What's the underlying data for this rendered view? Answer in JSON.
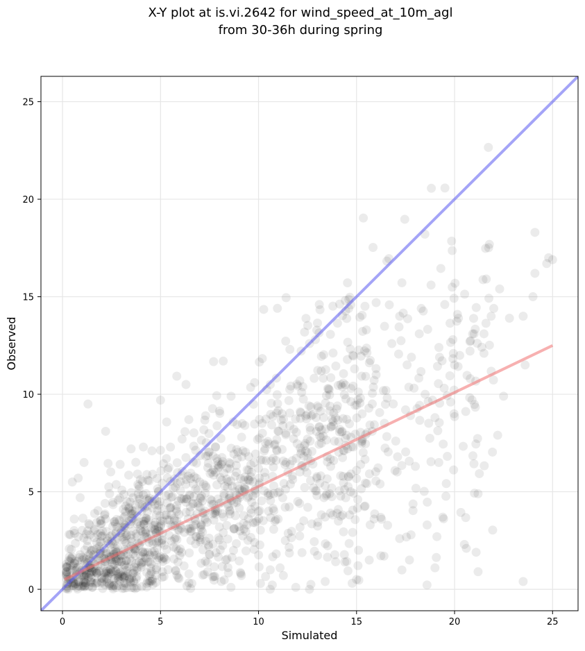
{
  "figure": {
    "title_line1": "X-Y plot at is.vi.2642 for wind_speed_at_10m_agl",
    "title_line2": "from 30-36h during spring"
  },
  "chart_data": {
    "type": "scatter",
    "title": "X-Y plot at is.vi.2642 for wind_speed_at_10m_agl\nfrom 30-36h during spring",
    "xlabel": "Simulated",
    "ylabel": "Observed",
    "xlim": [
      -1.1,
      26.3
    ],
    "ylim": [
      -1.1,
      26.3
    ],
    "xticks": [
      0,
      5,
      10,
      15,
      20,
      25
    ],
    "yticks": [
      0,
      5,
      10,
      15,
      20,
      25
    ],
    "grid": true,
    "legend": "none",
    "colors": {
      "points": "#000000",
      "identity_line": "#5a5af0",
      "fit_line": "#f07070",
      "grid": "#e6e6e6"
    },
    "point_alpha": 0.08,
    "series": [
      {
        "kind": "points",
        "note_count_approx": 1600,
        "points": [
          [
            0.3,
            0.5
          ],
          [
            0.5,
            1.0
          ],
          [
            0.8,
            0.4
          ],
          [
            1.0,
            1.5
          ],
          [
            1.2,
            0.8
          ],
          [
            1.5,
            2.0
          ],
          [
            1.8,
            1.2
          ],
          [
            2.0,
            0.6
          ],
          [
            2.2,
            1.8
          ],
          [
            2.5,
            0.9
          ],
          [
            2.8,
            2.2
          ],
          [
            3.0,
            1.4
          ],
          [
            3.2,
            0.7
          ],
          [
            3.5,
            2.6
          ],
          [
            3.8,
            1.1
          ],
          [
            4.0,
            3.0
          ],
          [
            4.2,
            1.9
          ],
          [
            4.5,
            0.8
          ],
          [
            4.8,
            2.4
          ],
          [
            5.0,
            3.5
          ],
          [
            5.2,
            1.6
          ],
          [
            5.5,
            4.2
          ],
          [
            5.8,
            2.1
          ],
          [
            6.0,
            3.3
          ],
          [
            6.2,
            1.2
          ],
          [
            6.5,
            4.8
          ],
          [
            6.8,
            2.7
          ],
          [
            7.0,
            5.5
          ],
          [
            7.2,
            3.9
          ],
          [
            7.5,
            1.8
          ],
          [
            7.8,
            6.0
          ],
          [
            8.0,
            4.4
          ],
          [
            8.2,
            2.9
          ],
          [
            8.5,
            6.5
          ],
          [
            8.8,
            5.0
          ],
          [
            9.0,
            3.2
          ],
          [
            9.2,
            7.1
          ],
          [
            9.5,
            5.6
          ],
          [
            9.8,
            2.4
          ],
          [
            10.0,
            6.2
          ],
          [
            10.2,
            8.0
          ],
          [
            10.5,
            4.8
          ],
          [
            10.8,
            7.4
          ],
          [
            11.0,
            3.6
          ],
          [
            11.2,
            9.0
          ],
          [
            11.5,
            6.0
          ],
          [
            11.8,
            8.2
          ],
          [
            12.0,
            4.5
          ],
          [
            12.2,
            10.1
          ],
          [
            12.5,
            7.0
          ],
          [
            12.8,
            5.2
          ],
          [
            13.0,
            9.4
          ],
          [
            13.2,
            11.2
          ],
          [
            13.5,
            6.8
          ],
          [
            13.8,
            8.6
          ],
          [
            14.0,
            3.9
          ],
          [
            14.2,
            10.5
          ],
          [
            14.5,
            7.9
          ],
          [
            14.8,
            12.0
          ],
          [
            15.0,
            6.1
          ],
          [
            15.2,
            9.8
          ],
          [
            15.5,
            13.3
          ],
          [
            15.8,
            8.1
          ],
          [
            16.0,
            11.0
          ],
          [
            16.2,
            5.4
          ],
          [
            16.5,
            10.2
          ],
          [
            16.8,
            12.6
          ],
          [
            17.0,
            7.6
          ],
          [
            17.2,
            14.0
          ],
          [
            17.5,
            9.2
          ],
          [
            17.8,
            11.9
          ],
          [
            18.0,
            6.3
          ],
          [
            18.2,
            13.1
          ],
          [
            18.5,
            10.0
          ],
          [
            18.8,
            15.6
          ],
          [
            19.0,
            8.8
          ],
          [
            19.2,
            12.4
          ],
          [
            19.5,
            14.6
          ],
          [
            19.8,
            9.6
          ],
          [
            20.0,
            11.5
          ],
          [
            20.2,
            13.9
          ],
          [
            20.5,
            2.3
          ],
          [
            20.8,
            10.8
          ],
          [
            21.0,
            13.1
          ],
          [
            21.2,
            4.9
          ],
          [
            21.5,
            12.1
          ],
          [
            22.0,
            14.4
          ],
          [
            22.2,
            7.9
          ],
          [
            22.5,
            9.9
          ],
          [
            22.8,
            13.9
          ],
          [
            23.5,
            0.4
          ],
          [
            23.5,
            14.0
          ],
          [
            23.6,
            11.5
          ],
          [
            24.0,
            15.0
          ],
          [
            24.1,
            16.2
          ],
          [
            24.1,
            18.3
          ],
          [
            24.7,
            16.7
          ],
          [
            24.8,
            17.0
          ],
          [
            25.0,
            16.9
          ],
          [
            1.3,
            9.5
          ],
          [
            2.2,
            8.1
          ],
          [
            1.1,
            6.5
          ],
          [
            0.8,
            5.7
          ],
          [
            0.5,
            5.5
          ],
          [
            5.0,
            9.7
          ],
          [
            3.5,
            7.2
          ],
          [
            6.3,
            10.5
          ],
          [
            8.2,
            11.7
          ],
          [
            13.1,
            14.6
          ],
          [
            14.6,
            14.4
          ],
          [
            16.0,
            14.7
          ],
          [
            18.3,
            14.4
          ],
          [
            21.5,
            13.1
          ],
          [
            22.3,
            15.4
          ],
          [
            11.6,
            12.3
          ],
          [
            12.6,
            12.6
          ],
          [
            9.8,
            10.6
          ],
          [
            0.4,
            2.8
          ],
          [
            0.6,
            3.6
          ],
          [
            0.9,
            4.7
          ],
          [
            1.6,
            3.0
          ],
          [
            2.4,
            4.9
          ],
          [
            3.1,
            4.1
          ],
          [
            3.9,
            5.3
          ],
          [
            4.6,
            5.9
          ],
          [
            5.3,
            6.7
          ],
          [
            6.1,
            7.7
          ],
          [
            7.3,
            8.9
          ],
          [
            8.6,
            9.9
          ],
          [
            9.3,
            8.4
          ],
          [
            10.6,
            10.5
          ],
          [
            12.9,
            12.8
          ],
          [
            1.7,
            0.3
          ],
          [
            2.6,
            0.2
          ],
          [
            3.4,
            0.5
          ],
          [
            4.3,
            0.3
          ],
          [
            5.1,
            0.9
          ],
          [
            5.9,
            0.6
          ],
          [
            6.6,
            0.3
          ],
          [
            7.4,
            0.9
          ],
          [
            8.1,
            0.4
          ],
          [
            9.1,
            0.8
          ],
          [
            10.1,
            0.3
          ],
          [
            11.1,
            1.1
          ],
          [
            11.9,
            0.1
          ],
          [
            12.6,
            0.0
          ],
          [
            13.4,
            0.4
          ],
          [
            14.4,
            1.4
          ],
          [
            15.0,
            0.5
          ],
          [
            15.1,
            2.0
          ],
          [
            16.4,
            1.7
          ],
          [
            17.2,
            2.6
          ],
          [
            17.7,
            1.5
          ],
          [
            18.6,
            3.3
          ],
          [
            19.0,
            1.1
          ],
          [
            19.1,
            2.7
          ],
          [
            19.4,
            3.7
          ],
          [
            20.6,
            2.1
          ],
          [
            21.1,
            1.9
          ],
          [
            21.2,
            0.9
          ]
        ]
      },
      {
        "kind": "line",
        "name": "",
        "color": "#5a5af0",
        "x": [
          -1.1,
          26.3
        ],
        "y": [
          -1.1,
          26.3
        ]
      },
      {
        "kind": "line",
        "name": "",
        "color": "#f07070",
        "x": [
          0.1,
          25.0
        ],
        "y": [
          0.5,
          12.5
        ]
      }
    ]
  }
}
